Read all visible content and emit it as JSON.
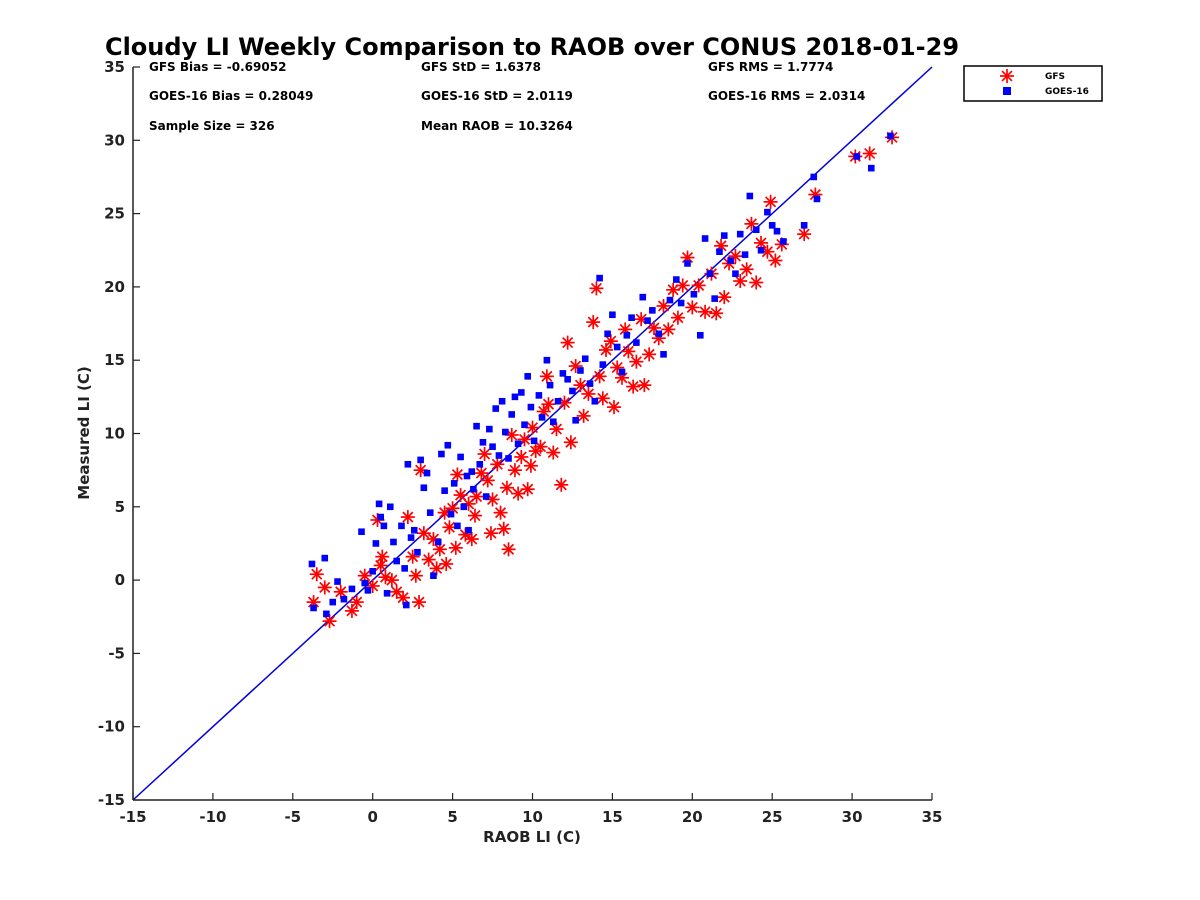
{
  "chart_data": {
    "type": "scatter",
    "title": "Cloudy LI Weekly Comparison to RAOB over CONUS 2018-01-29",
    "xlabel": "RAOB LI (C)",
    "ylabel": "Measured LI (C)",
    "xlim": [
      -15,
      35
    ],
    "ylim": [
      -15,
      35
    ],
    "xticks": [
      -15,
      -10,
      -5,
      0,
      5,
      10,
      15,
      20,
      25,
      30,
      35
    ],
    "yticks": [
      -15,
      -10,
      -5,
      0,
      5,
      10,
      15,
      20,
      25,
      30,
      35
    ],
    "grid": false,
    "legend_position": "top-right, outside plot",
    "reference_line": {
      "type": "one-to-one",
      "from": [
        -15,
        -15
      ],
      "to": [
        35,
        35
      ],
      "color": "#0000dd"
    },
    "stats": [
      "GFS Bias = -0.69052",
      "GFS StD = 1.6378",
      "GFS RMS = 1.7774",
      "GOES-16 Bias = 0.28049",
      "GOES-16 StD = 2.0119",
      "GOES-16 RMS = 2.0314",
      "Sample Size = 326",
      "Mean RAOB = 10.3264"
    ],
    "series": [
      {
        "name": "GFS",
        "marker": "asterisk",
        "color": "#ff0000",
        "points": [
          [
            -3.7,
            -1.5
          ],
          [
            -3.5,
            0.4
          ],
          [
            -3,
            -0.5
          ],
          [
            -2.7,
            -2.8
          ],
          [
            -2,
            -0.8
          ],
          [
            -1.3,
            -2.1
          ],
          [
            -1,
            -1.5
          ],
          [
            -0.5,
            0.3
          ],
          [
            0,
            -0.4
          ],
          [
            0.3,
            4.1
          ],
          [
            0.5,
            1
          ],
          [
            0.6,
            1.6
          ],
          [
            0.8,
            0.2
          ],
          [
            1.2,
            0
          ],
          [
            1.5,
            -0.8
          ],
          [
            1.9,
            -1.2
          ],
          [
            2.2,
            4.3
          ],
          [
            2.5,
            1.6
          ],
          [
            2.7,
            0.3
          ],
          [
            2.9,
            -1.5
          ],
          [
            3,
            7.5
          ],
          [
            3.2,
            3.2
          ],
          [
            3.5,
            1.4
          ],
          [
            3.8,
            2.8
          ],
          [
            4,
            0.8
          ],
          [
            4.2,
            2.1
          ],
          [
            4.5,
            4.6
          ],
          [
            4.6,
            1.1
          ],
          [
            4.8,
            3.6
          ],
          [
            5,
            4.9
          ],
          [
            5.2,
            2.2
          ],
          [
            5.3,
            7.2
          ],
          [
            5.5,
            5.8
          ],
          [
            5.8,
            3.1
          ],
          [
            6,
            5.2
          ],
          [
            6.2,
            2.8
          ],
          [
            6.4,
            4.4
          ],
          [
            6.5,
            5.7
          ],
          [
            6.8,
            7.3
          ],
          [
            7,
            8.6
          ],
          [
            7.2,
            6.8
          ],
          [
            7.4,
            3.2
          ],
          [
            7.5,
            5.5
          ],
          [
            7.8,
            7.9
          ],
          [
            8,
            4.6
          ],
          [
            8.2,
            3.5
          ],
          [
            8.4,
            6.3
          ],
          [
            8.5,
            2.1
          ],
          [
            8.7,
            9.9
          ],
          [
            8.9,
            7.5
          ],
          [
            9.1,
            5.9
          ],
          [
            9.3,
            8.4
          ],
          [
            9.5,
            9.6
          ],
          [
            9.7,
            6.2
          ],
          [
            9.9,
            7.8
          ],
          [
            10,
            10.4
          ],
          [
            10.2,
            8.8
          ],
          [
            10.5,
            9.1
          ],
          [
            10.7,
            11.5
          ],
          [
            10.9,
            13.9
          ],
          [
            11,
            12
          ],
          [
            11.3,
            8.7
          ],
          [
            11.5,
            10.3
          ],
          [
            11.8,
            6.5
          ],
          [
            12,
            12.1
          ],
          [
            12.2,
            16.2
          ],
          [
            12.4,
            9.4
          ],
          [
            12.7,
            14.6
          ],
          [
            13,
            13.3
          ],
          [
            13.2,
            11.2
          ],
          [
            13.5,
            12.7
          ],
          [
            13.8,
            17.6
          ],
          [
            14,
            19.9
          ],
          [
            14.2,
            13.9
          ],
          [
            14.4,
            12.4
          ],
          [
            14.6,
            15.7
          ],
          [
            14.9,
            16.3
          ],
          [
            15.1,
            11.8
          ],
          [
            15.3,
            14.5
          ],
          [
            15.6,
            13.8
          ],
          [
            15.8,
            17.1
          ],
          [
            16,
            15.6
          ],
          [
            16.3,
            13.2
          ],
          [
            16.5,
            14.9
          ],
          [
            16.8,
            17.8
          ],
          [
            17,
            13.3
          ],
          [
            17.3,
            15.4
          ],
          [
            17.6,
            17.2
          ],
          [
            17.9,
            16.5
          ],
          [
            18.2,
            18.7
          ],
          [
            18.5,
            17.1
          ],
          [
            18.8,
            19.8
          ],
          [
            19.1,
            17.9
          ],
          [
            19.4,
            20.1
          ],
          [
            19.7,
            22
          ],
          [
            20,
            18.6
          ],
          [
            20.4,
            20.1
          ],
          [
            20.8,
            18.3
          ],
          [
            21.2,
            20.9
          ],
          [
            21.5,
            18.2
          ],
          [
            21.8,
            22.8
          ],
          [
            22,
            19.3
          ],
          [
            22.3,
            21.6
          ],
          [
            22.7,
            22.1
          ],
          [
            23,
            20.4
          ],
          [
            23.4,
            21.2
          ],
          [
            23.7,
            24.3
          ],
          [
            24,
            20.3
          ],
          [
            24.3,
            23
          ],
          [
            24.7,
            22.4
          ],
          [
            24.9,
            25.8
          ],
          [
            25.2,
            21.8
          ],
          [
            25.6,
            22.9
          ],
          [
            27,
            23.6
          ],
          [
            27.7,
            26.3
          ],
          [
            30.2,
            28.9
          ],
          [
            31.1,
            29.1
          ],
          [
            32.5,
            30.2
          ]
        ]
      },
      {
        "name": "GOES-16",
        "marker": "square",
        "color": "#0000ff",
        "points": [
          [
            -3.8,
            1.1
          ],
          [
            -3.7,
            -1.9
          ],
          [
            -3,
            1.5
          ],
          [
            -2.9,
            -2.3
          ],
          [
            -2.5,
            -1.5
          ],
          [
            -2.2,
            -0.1
          ],
          [
            -1.8,
            -1.3
          ],
          [
            -1.3,
            -0.6
          ],
          [
            -0.7,
            3.3
          ],
          [
            -0.5,
            -0.2
          ],
          [
            -0.3,
            -0.7
          ],
          [
            0,
            0.6
          ],
          [
            0.2,
            2.5
          ],
          [
            0.4,
            5.2
          ],
          [
            0.5,
            4.3
          ],
          [
            0.7,
            3.7
          ],
          [
            0.9,
            -0.9
          ],
          [
            1.1,
            5
          ],
          [
            1.3,
            2.6
          ],
          [
            1.5,
            1.3
          ],
          [
            1.8,
            3.7
          ],
          [
            2,
            0.8
          ],
          [
            2.1,
            -1.7
          ],
          [
            2.2,
            7.9
          ],
          [
            2.4,
            2.9
          ],
          [
            2.6,
            3.4
          ],
          [
            2.8,
            1.9
          ],
          [
            3,
            8.2
          ],
          [
            3.2,
            6.3
          ],
          [
            3.4,
            7.3
          ],
          [
            3.6,
            4.6
          ],
          [
            3.8,
            0.3
          ],
          [
            4.1,
            2.6
          ],
          [
            4.3,
            8.6
          ],
          [
            4.5,
            6.1
          ],
          [
            4.7,
            9.2
          ],
          [
            4.9,
            4.5
          ],
          [
            5.1,
            6.6
          ],
          [
            5.3,
            3.7
          ],
          [
            5.5,
            8.4
          ],
          [
            5.7,
            5
          ],
          [
            5.9,
            7.1
          ],
          [
            6,
            3.4
          ],
          [
            6.2,
            7.4
          ],
          [
            6.3,
            6.2
          ],
          [
            6.5,
            10.5
          ],
          [
            6.7,
            7.9
          ],
          [
            6.9,
            9.4
          ],
          [
            7.1,
            5.7
          ],
          [
            7.3,
            10.3
          ],
          [
            7.5,
            9.1
          ],
          [
            7.7,
            11.7
          ],
          [
            7.9,
            8.5
          ],
          [
            8.1,
            12.2
          ],
          [
            8.3,
            10.1
          ],
          [
            8.5,
            8.3
          ],
          [
            8.7,
            11.3
          ],
          [
            8.9,
            12.5
          ],
          [
            9.1,
            9.3
          ],
          [
            9.3,
            12.8
          ],
          [
            9.5,
            10.6
          ],
          [
            9.7,
            13.9
          ],
          [
            9.9,
            11.8
          ],
          [
            10.1,
            9.5
          ],
          [
            10.4,
            12.6
          ],
          [
            10.6,
            11.1
          ],
          [
            10.9,
            15
          ],
          [
            11.1,
            13.3
          ],
          [
            11.3,
            10.8
          ],
          [
            11.6,
            12.2
          ],
          [
            11.9,
            14.1
          ],
          [
            12.2,
            13.7
          ],
          [
            12.5,
            12.9
          ],
          [
            12.7,
            10.9
          ],
          [
            13,
            14.3
          ],
          [
            13.3,
            15.1
          ],
          [
            13.6,
            13.4
          ],
          [
            13.9,
            12.2
          ],
          [
            14.2,
            20.6
          ],
          [
            14.4,
            14.7
          ],
          [
            14.7,
            16.8
          ],
          [
            15,
            18.1
          ],
          [
            15.3,
            15.9
          ],
          [
            15.6,
            14.2
          ],
          [
            15.9,
            16.7
          ],
          [
            16.2,
            17.9
          ],
          [
            16.5,
            16.2
          ],
          [
            16.9,
            19.3
          ],
          [
            17.2,
            17.7
          ],
          [
            17.5,
            18.4
          ],
          [
            17.9,
            16.8
          ],
          [
            18.2,
            15.4
          ],
          [
            18.6,
            19.1
          ],
          [
            19,
            20.5
          ],
          [
            19.3,
            18.9
          ],
          [
            19.7,
            21.6
          ],
          [
            20.1,
            19.5
          ],
          [
            20.5,
            16.7
          ],
          [
            20.8,
            23.3
          ],
          [
            21.1,
            20.9
          ],
          [
            21.4,
            19.2
          ],
          [
            21.7,
            22.4
          ],
          [
            22,
            23.5
          ],
          [
            22.4,
            21.8
          ],
          [
            22.7,
            20.9
          ],
          [
            23,
            23.6
          ],
          [
            23.3,
            22.2
          ],
          [
            23.6,
            26.2
          ],
          [
            24,
            23.9
          ],
          [
            24.3,
            22.5
          ],
          [
            24.7,
            25.1
          ],
          [
            25,
            24.2
          ],
          [
            25.3,
            23.8
          ],
          [
            25.7,
            23.1
          ],
          [
            27,
            24.2
          ],
          [
            27.6,
            27.5
          ],
          [
            27.8,
            26
          ],
          [
            30.3,
            28.9
          ],
          [
            31.2,
            28.1
          ],
          [
            32.4,
            30.3
          ]
        ]
      }
    ]
  }
}
